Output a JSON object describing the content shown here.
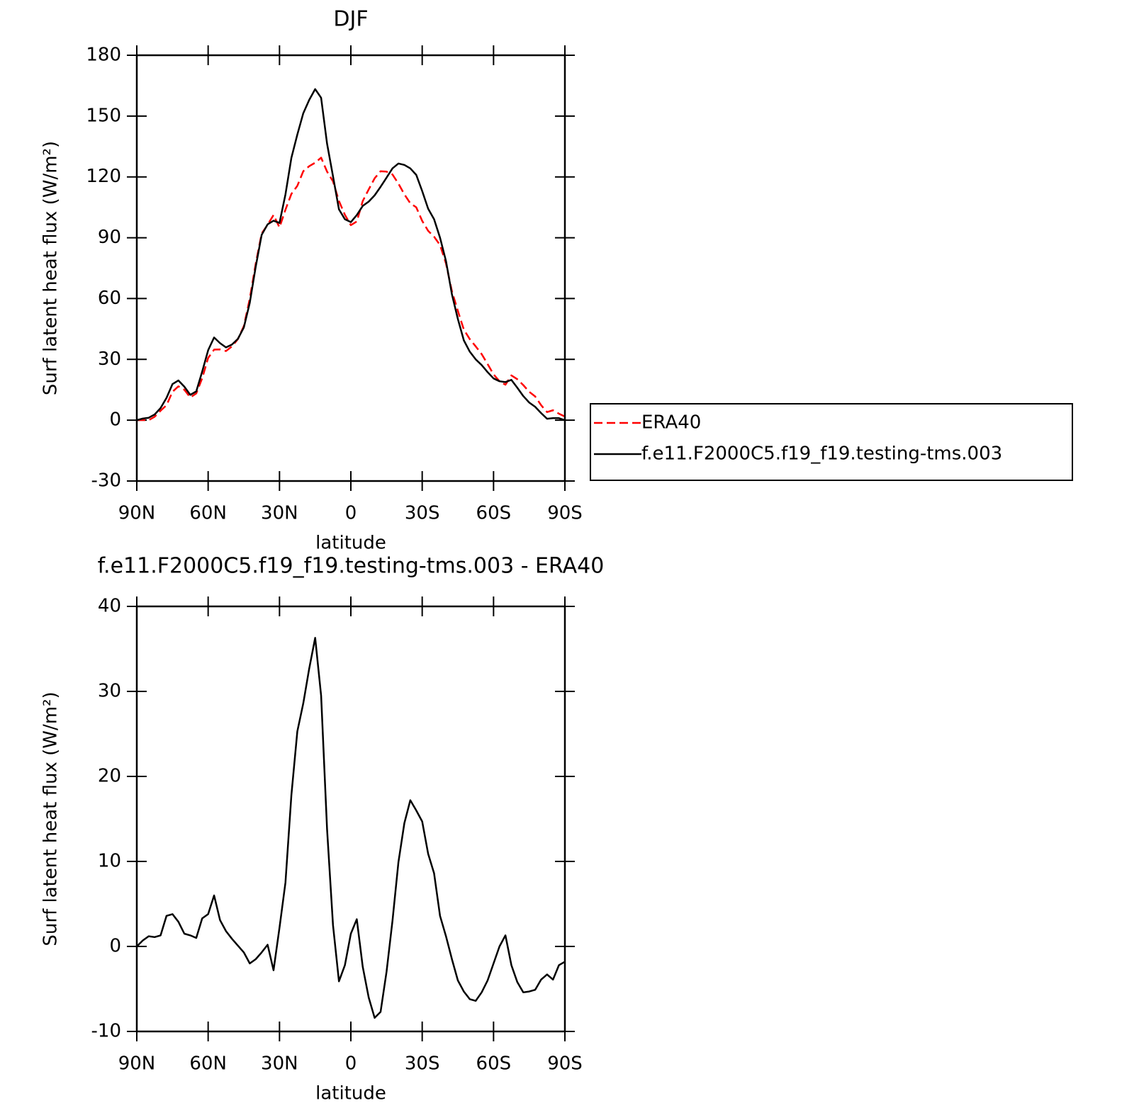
{
  "chart_data": [
    {
      "type": "line",
      "title": "DJF",
      "xlabel": "latitude",
      "ylabel": "Surf latent heat flux (W/m²)",
      "x": [
        90,
        87.5,
        85,
        82.5,
        80,
        77.5,
        75,
        72.5,
        70,
        67.5,
        65,
        62.5,
        60,
        57.5,
        55,
        52.5,
        50,
        47.5,
        45,
        42.5,
        40,
        37.5,
        35,
        32.5,
        30,
        27.5,
        25,
        22.5,
        20,
        17.5,
        15,
        12.5,
        10,
        7.5,
        5,
        2.5,
        0,
        -2.5,
        -5,
        -7.5,
        -10,
        -12.5,
        -15,
        -17.5,
        -20,
        -22.5,
        -25,
        -27.5,
        -30,
        -32.5,
        -35,
        -37.5,
        -40,
        -42.5,
        -45,
        -47.5,
        -50,
        -52.5,
        -55,
        -57.5,
        -60,
        -62.5,
        -65,
        -67.5,
        -70,
        -72.5,
        -75,
        -77.5,
        -80,
        -82.5,
        -85,
        -87.5,
        -90
      ],
      "series": [
        {
          "name": "ERA40",
          "color": "#ff0000",
          "linestyle": "dashed",
          "values": [
            0,
            0.1,
            0,
            1.7,
            4.7,
            7.4,
            14,
            16.7,
            15,
            11.2,
            13.2,
            20.7,
            30.7,
            34.8,
            34.9,
            34.1,
            36.4,
            40,
            46.4,
            59.9,
            77.2,
            92.1,
            96.4,
            101.2,
            95.1,
            103.8,
            111.6,
            115.6,
            122.8,
            125.3,
            127,
            129.5,
            122.6,
            117.8,
            108.1,
            101.3,
            96.2,
            98,
            108.1,
            113.8,
            119.3,
            122.8,
            122.6,
            121.2,
            116.7,
            111.4,
            107,
            105,
            98.3,
            93.4,
            90.5,
            86.4,
            77.3,
            63.6,
            53.9,
            44.7,
            40,
            36.4,
            32.6,
            27.7,
            22.6,
            19.2,
            17.5,
            22.1,
            20.2,
            17.3,
            14,
            11.7,
            7.4,
            4,
            4.9,
            3.2,
            1.8
          ]
        },
        {
          "name": "f.e11.F2000C5.f19_f19.testing-tms.003",
          "color": "#000000",
          "linestyle": "solid",
          "values": [
            0,
            0.8,
            1.2,
            2.8,
            6,
            11,
            17.8,
            19.6,
            16.5,
            12.5,
            14.2,
            24,
            34.5,
            40.8,
            38,
            35.9,
            37.3,
            40.1,
            45.7,
            57.9,
            75.7,
            91.4,
            96.6,
            98.4,
            97.3,
            111.3,
            129.4,
            140.9,
            151.4,
            158,
            163.3,
            159,
            136.4,
            120.3,
            104,
            99.1,
            97.7,
            101.2,
            105.7,
            107.8,
            110.9,
            115.1,
            119.6,
            124.2,
            126.6,
            125.9,
            124.2,
            121,
            113,
            104.3,
            99.1,
            90,
            78.5,
            62.1,
            49.9,
            39.4,
            33.8,
            30,
            27.2,
            23.7,
            20.6,
            19.2,
            18.8,
            19.9,
            16,
            11.9,
            8.7,
            6.6,
            3.5,
            0.7,
            1,
            1,
            0
          ]
        }
      ],
      "xlim": [
        90,
        -90
      ],
      "xticks": [
        {
          "value": 90,
          "label": "90N"
        },
        {
          "value": 60,
          "label": "60N"
        },
        {
          "value": 30,
          "label": "30N"
        },
        0,
        {
          "value": -30,
          "label": "30S"
        },
        {
          "value": -60,
          "label": "60S"
        },
        {
          "value": -90,
          "label": "90S"
        }
      ],
      "ylim": [
        -30,
        180
      ],
      "yticks": [
        -30,
        0,
        30,
        60,
        90,
        120,
        150,
        180
      ],
      "legend": "outside-right"
    },
    {
      "type": "line",
      "title": "f.e11.F2000C5.f19_f19.testing-tms.003 - ERA40",
      "xlabel": "latitude",
      "ylabel": "Surf latent heat flux (W/m²)",
      "x": [
        90,
        87.5,
        85,
        82.5,
        80,
        77.5,
        75,
        72.5,
        70,
        67.5,
        65,
        62.5,
        60,
        57.5,
        55,
        52.5,
        50,
        47.5,
        45,
        42.5,
        40,
        37.5,
        35,
        32.5,
        30,
        27.5,
        25,
        22.5,
        20,
        17.5,
        15,
        12.5,
        10,
        7.5,
        5,
        2.5,
        0,
        -2.5,
        -5,
        -7.5,
        -10,
        -12.5,
        -15,
        -17.5,
        -20,
        -22.5,
        -25,
        -27.5,
        -30,
        -32.5,
        -35,
        -37.5,
        -40,
        -42.5,
        -45,
        -47.5,
        -50,
        -52.5,
        -55,
        -57.5,
        -60,
        -62.5,
        -65,
        -67.5,
        -70,
        -72.5,
        -75,
        -77.5,
        -80,
        -82.5,
        -85,
        -87.5,
        -90
      ],
      "series": [
        {
          "color": "#000000",
          "linestyle": "solid",
          "values": [
            0,
            0.7,
            1.2,
            1.1,
            1.3,
            3.6,
            3.8,
            2.9,
            1.5,
            1.3,
            1,
            3.3,
            3.8,
            6,
            3.1,
            1.8,
            0.9,
            0.1,
            -0.7,
            -2,
            -1.5,
            -0.7,
            0.2,
            -2.8,
            2.2,
            7.5,
            17.8,
            25.3,
            28.6,
            32.7,
            36.3,
            29.5,
            13.8,
            2.5,
            -4.1,
            -2.2,
            1.5,
            3.2,
            -2.4,
            -6,
            -8.4,
            -7.7,
            -3,
            3,
            9.9,
            14.5,
            17.2,
            16,
            14.7,
            10.9,
            8.6,
            3.6,
            1.2,
            -1.5,
            -4,
            -5.3,
            -6.2,
            -6.4,
            -5.4,
            -4,
            -2,
            0,
            1.3,
            -2.2,
            -4.2,
            -5.4,
            -5.3,
            -5.1,
            -3.9,
            -3.3,
            -3.9,
            -2.2,
            -1.8
          ]
        }
      ],
      "xlim": [
        90,
        -90
      ],
      "xticks": [
        {
          "value": 90,
          "label": "90N"
        },
        {
          "value": 60,
          "label": "60N"
        },
        {
          "value": 30,
          "label": "30N"
        },
        0,
        {
          "value": -30,
          "label": "30S"
        },
        {
          "value": -60,
          "label": "60S"
        },
        {
          "value": -90,
          "label": "90S"
        }
      ],
      "ylim": [
        -10,
        40
      ],
      "yticks": [
        -10,
        0,
        10,
        20,
        30,
        40
      ]
    }
  ]
}
